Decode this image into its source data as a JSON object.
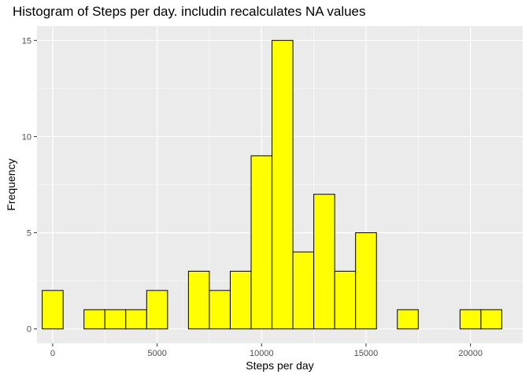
{
  "chart_data": {
    "type": "bar",
    "title": "Histogram of Steps per day. includin recalculates NA values",
    "xlabel": "Steps per day",
    "ylabel": "Frequency",
    "xlim": [
      -750,
      22500
    ],
    "ylim": [
      -0.75,
      15.75
    ],
    "x_ticks": [
      0,
      5000,
      10000,
      15000,
      20000
    ],
    "x_tick_labels": [
      "0",
      "5000",
      "10000",
      "15000",
      "20000"
    ],
    "y_ticks": [
      0,
      5,
      10,
      15
    ],
    "y_tick_labels": [
      "0",
      "5",
      "10",
      "15"
    ],
    "bin_width": 1000,
    "bin_centers": [
      0,
      1000,
      2000,
      3000,
      4000,
      5000,
      6000,
      7000,
      8000,
      9000,
      10000,
      11000,
      12000,
      13000,
      14000,
      15000,
      16000,
      17000,
      18000,
      19000,
      20000,
      21000
    ],
    "values": [
      2,
      0,
      1,
      1,
      1,
      2,
      0,
      3,
      2,
      3,
      9,
      15,
      4,
      7,
      3,
      5,
      0,
      1,
      0,
      0,
      1,
      1
    ],
    "bar_fill": "#FFFF00",
    "bar_outline": "#000000",
    "panel_background": "#EBEBEB",
    "grid_color": "#FFFFFF",
    "grid": true
  }
}
